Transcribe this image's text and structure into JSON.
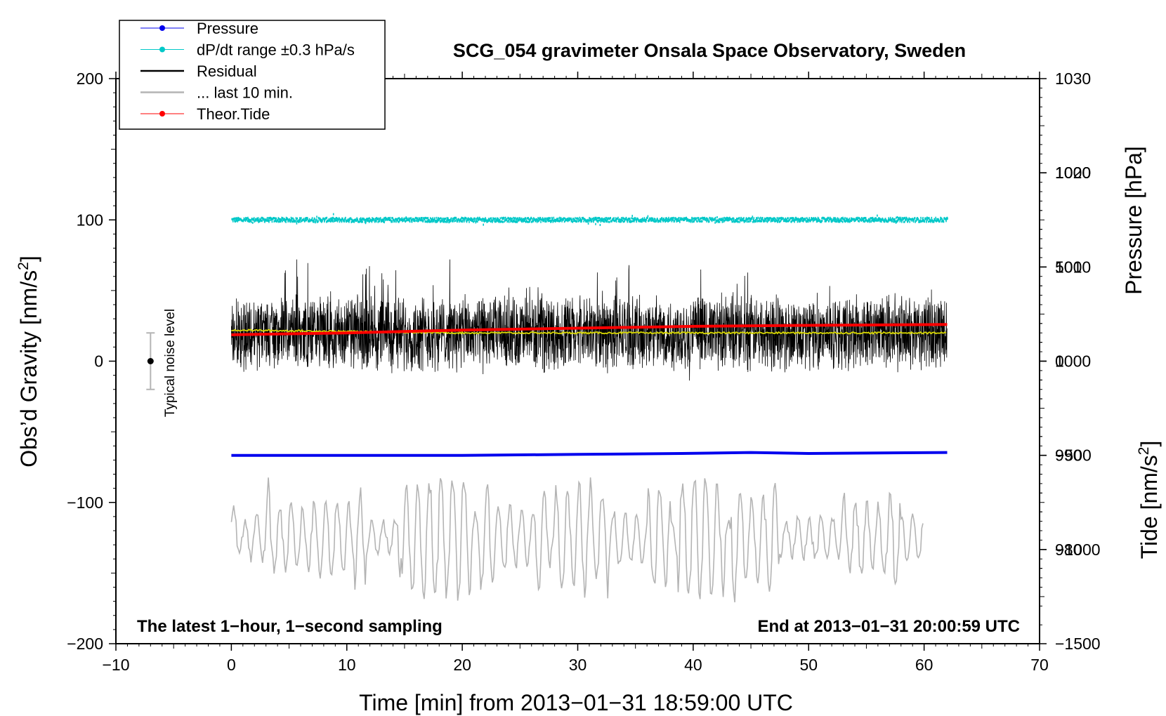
{
  "chart_data": {
    "type": "line",
    "title": "SCG_054 gravimeter Onsala Space Observatory, Sweden",
    "xlabel": "Time [min] from 2013−01−31 18:59:00 UTC",
    "ylabel_left": "Obs’d Gravity [nm/s",
    "ylabel_left_sup": "2",
    "ylabel_left_end": "]",
    "ylabel_pressure": "Pressure [hPa]",
    "ylabel_tide": "Tide [nm/s",
    "ylabel_tide_sup": "2",
    "ylabel_tide_end": "]",
    "xlim": [
      -10,
      70
    ],
    "ylim_left": [
      -200,
      200
    ],
    "ylim_pressure": [
      970,
      1030
    ],
    "ylim_tide": [
      -1500,
      1500
    ],
    "x_ticks": [
      -10,
      0,
      10,
      20,
      30,
      40,
      50,
      60,
      70
    ],
    "x_tick_labels": [
      "−10",
      "0",
      "10",
      "20",
      "30",
      "40",
      "50",
      "60",
      "70"
    ],
    "y_left_ticks": [
      -200,
      -100,
      0,
      100,
      200
    ],
    "y_left_tick_labels": [
      "−200",
      "−100",
      "0",
      "100",
      "200"
    ],
    "y_pressure_ticks": [
      980,
      990,
      1000,
      1010,
      1020,
      1030
    ],
    "y_pressure_tick_labels": [
      "980",
      "990",
      "1000",
      "1010",
      "1020",
      "1030"
    ],
    "y_tide_ticks": [
      -1500,
      -1000,
      -500,
      0,
      500,
      1000
    ],
    "y_tide_tick_labels": [
      "−1500",
      "−1000",
      "−500",
      "0",
      "500",
      "1000"
    ],
    "legend": {
      "placement": "top-left",
      "entries": [
        {
          "label": "Pressure",
          "color": "#0000ee",
          "style": "line-dot"
        },
        {
          "label": "dP/dt range ±0.3 hPa/s",
          "color": "#00c8c8",
          "style": "line-dot"
        },
        {
          "label": "Residual",
          "color": "#000000",
          "style": "line"
        },
        {
          "label": "... last 10 min.",
          "color": "#b4b4b4",
          "style": "line"
        },
        {
          "label": "Theor.Tide",
          "color": "#ff0000",
          "style": "line-dot"
        }
      ]
    },
    "series": [
      {
        "name": "Pressure",
        "axis": "pressure",
        "color": "#0000ee",
        "x": [
          0,
          10,
          20,
          30,
          39,
          45,
          50,
          62
        ],
        "y": [
          990.0,
          990.0,
          990.0,
          990.1,
          990.2,
          990.3,
          990.2,
          990.3
        ]
      },
      {
        "name": "dP/dt range ±0.3 hPa/s",
        "axis": "left",
        "color": "#00c8c8",
        "x_range": [
          0,
          62
        ],
        "center": 100,
        "spread": 1.5
      },
      {
        "name": "Residual",
        "axis": "left",
        "color": "#000000",
        "x_range": [
          0,
          62
        ],
        "center": 20,
        "amplitude_min": -30,
        "amplitude_max": 72
      },
      {
        "name": "... last 10 min.",
        "axis": "left",
        "color": "#b4b4b4",
        "x_range": [
          0,
          60
        ],
        "center": -125,
        "amplitude_min": -172,
        "amplitude_max": -77
      },
      {
        "name": "Theor.Tide",
        "axis": "tide",
        "color": "#ff0000",
        "x": [
          0,
          10,
          20,
          30,
          40,
          50,
          62
        ],
        "y": [
          140,
          150,
          165,
          175,
          185,
          190,
          195
        ]
      },
      {
        "name": "",
        "axis": "left",
        "color": "#d8d800",
        "x": [
          0,
          10,
          20,
          30,
          40,
          50,
          62
        ],
        "y": [
          22,
          21,
          20,
          20,
          20,
          20,
          20
        ]
      }
    ],
    "annotations": {
      "bottom_left": "The latest 1−hour, 1−second sampling",
      "bottom_right": "End at 2013−01−31 20:00:59 UTC",
      "noise_label": "Typical noise level",
      "noise_bar": {
        "x": -7,
        "center": 0,
        "half_range": 20
      }
    }
  }
}
